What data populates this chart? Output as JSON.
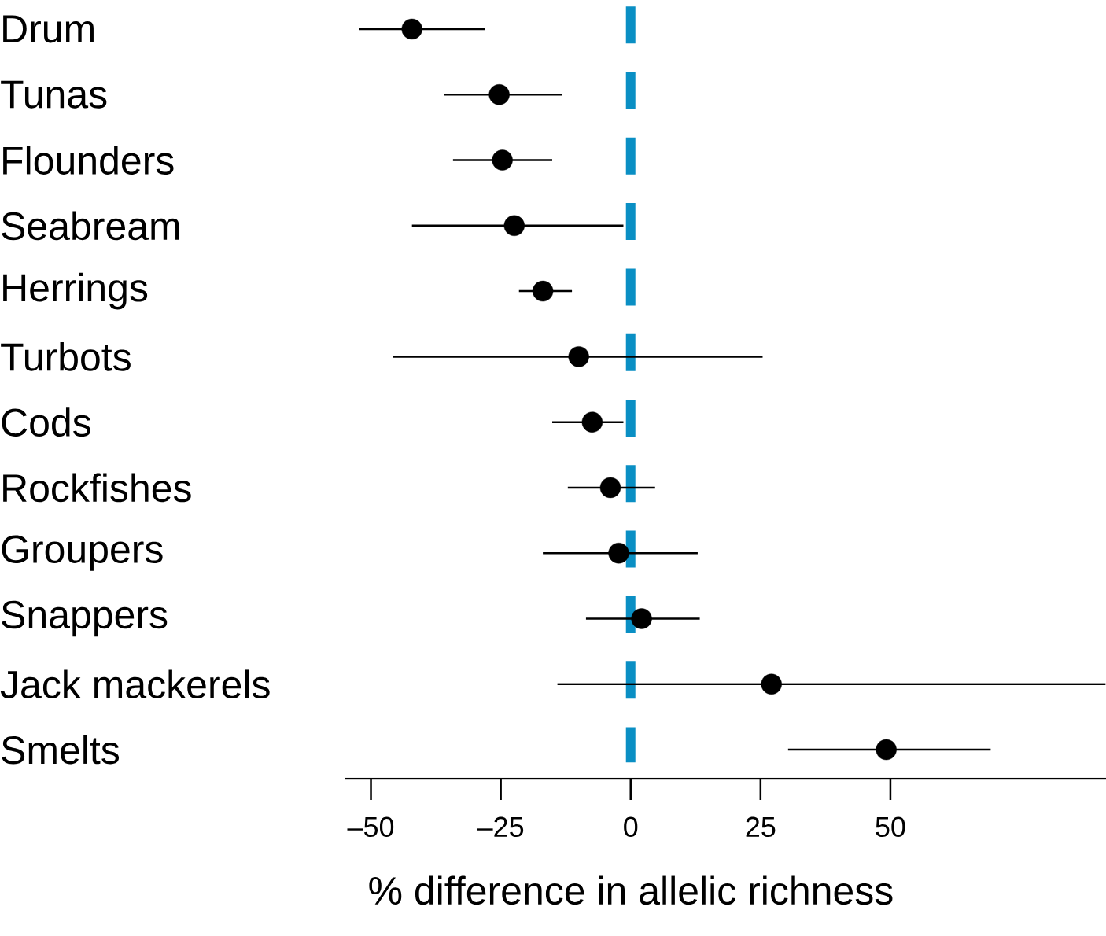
{
  "chart_data": {
    "type": "scatter",
    "orientation": "horizontal",
    "color": "#000000",
    "xlabel": "% difference in allelic richness",
    "categories": [
      "Drum",
      "Tunas",
      "Flounders",
      "Seabream",
      "Herrings",
      "Turbots",
      "Cods",
      "Rockfishes",
      "Groupers",
      "Snappers",
      "Jack mackerels",
      "Smelts"
    ],
    "values": [
      -42.1,
      -25.3,
      -24.7,
      -22.4,
      -16.9,
      -10.0,
      -7.4,
      -3.9,
      -2.3,
      2.1,
      27.1,
      49.2
    ],
    "errors": [
      [
        -52.2,
        -28.0
      ],
      [
        -35.9,
        -13.2
      ],
      [
        -34.2,
        -15.1
      ],
      [
        -42.1,
        -1.4
      ],
      [
        -21.5,
        -11.3
      ],
      [
        -45.8,
        25.4
      ],
      [
        -15.1,
        -1.4
      ],
      [
        -12.1,
        4.7
      ],
      [
        -16.9,
        12.9
      ],
      [
        -8.6,
        13.3
      ],
      [
        -14.1,
        91.4
      ],
      [
        30.3,
        69.3
      ]
    ],
    "xlim": [
      -55,
      91.5
    ],
    "xticks": [
      {
        "value": -50,
        "label": "–50"
      },
      {
        "value": -25,
        "label": "–25"
      },
      0,
      25,
      50
    ],
    "ref_lines": [
      {
        "axis": "x",
        "value": 0,
        "color": "#0a8fc4",
        "line_style": "dashed"
      }
    ]
  }
}
